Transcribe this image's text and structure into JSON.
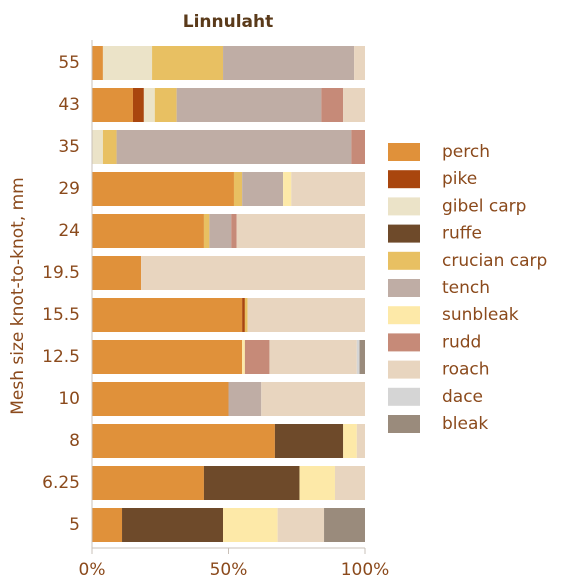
{
  "chart_data": {
    "type": "stacked_barh",
    "title": "Linnulaht",
    "ylabel": "Mesh size knot-to-knot, mm",
    "categories": [
      "55",
      "43",
      "35",
      "29",
      "24",
      "19.5",
      "15.5",
      "12.5",
      "10",
      "8",
      "6.25",
      "5"
    ],
    "xlim": [
      0,
      100
    ],
    "xticks": [
      {
        "value": 0,
        "label": "0%"
      },
      {
        "value": 50,
        "label": "50%"
      },
      {
        "value": 100,
        "label": "100%"
      }
    ],
    "series": [
      {
        "name": "perch",
        "color": "#e0913a",
        "values": [
          4,
          15,
          0,
          52,
          41,
          18,
          55,
          55,
          50,
          67,
          41,
          11
        ]
      },
      {
        "name": "pike",
        "color": "#a9460e",
        "values": [
          0,
          4,
          0,
          0,
          0,
          0,
          1,
          0,
          0,
          0,
          0,
          0
        ]
      },
      {
        "name": "gibel carp",
        "color": "#ebe3c8",
        "values": [
          18,
          4,
          4,
          0,
          0,
          0,
          0,
          0,
          0,
          0,
          0,
          0
        ]
      },
      {
        "name": "ruffe",
        "color": "#6e4a2a",
        "values": [
          0,
          0,
          0,
          0,
          0,
          0,
          0,
          0,
          0,
          25,
          35,
          37
        ]
      },
      {
        "name": "crucian carp",
        "color": "#e8c062",
        "values": [
          26,
          8,
          5,
          3,
          2,
          0,
          1,
          0,
          0,
          0,
          0,
          0
        ]
      },
      {
        "name": "tench",
        "color": "#bfada5",
        "values": [
          48,
          53,
          86,
          15,
          8,
          0,
          0,
          0,
          12,
          0,
          0,
          0
        ]
      },
      {
        "name": "sunbleak",
        "color": "#fde9a8",
        "values": [
          0,
          0,
          0,
          3,
          0,
          0,
          0,
          1,
          0,
          5,
          13,
          20
        ]
      },
      {
        "name": "rudd",
        "color": "#c68a78",
        "values": [
          0,
          8,
          5,
          0,
          2,
          0,
          0,
          9,
          0,
          0,
          0,
          0
        ]
      },
      {
        "name": "roach",
        "color": "#e8d5bf",
        "values": [
          4,
          8,
          0,
          27,
          47,
          82,
          43,
          32,
          38,
          3,
          11,
          17
        ]
      },
      {
        "name": "dace",
        "color": "#d5d5d5",
        "values": [
          0,
          0,
          0,
          0,
          0,
          0,
          0,
          1,
          0,
          0,
          0,
          0
        ]
      },
      {
        "name": "bleak",
        "color": "#9a8b7c",
        "values": [
          0,
          0,
          0,
          0,
          0,
          0,
          0,
          2,
          0,
          0,
          0,
          15
        ]
      }
    ]
  }
}
